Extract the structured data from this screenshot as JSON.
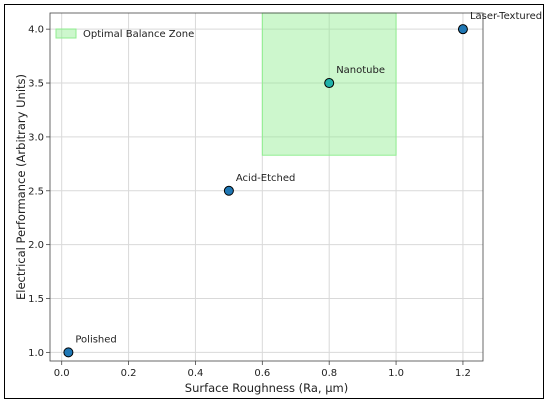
{
  "chart_data": {
    "type": "scatter",
    "xlabel": "Surface Roughness (Ra, μm)",
    "ylabel": "Electrical Performance (Arbitrary Units)",
    "xlim": [
      -0.035,
      1.26
    ],
    "ylim": [
      0.92,
      4.15
    ],
    "xticks": [
      0.0,
      0.2,
      0.4,
      0.6,
      0.8,
      1.0,
      1.2
    ],
    "yticks": [
      1.0,
      1.5,
      2.0,
      2.5,
      3.0,
      3.5,
      4.0
    ],
    "grid": true,
    "points": [
      {
        "label": "Polished",
        "x": 0.02,
        "y": 1.0,
        "color": "#1f77b4"
      },
      {
        "label": "Acid-Etched",
        "x": 0.5,
        "y": 2.5,
        "color": "#1f77b4"
      },
      {
        "label": "Nanotube",
        "x": 0.8,
        "y": 3.5,
        "color": "#20b2aa"
      },
      {
        "label": "Laser-Textured",
        "x": 1.2,
        "y": 4.0,
        "color": "#1f77b4"
      }
    ],
    "region": {
      "name": "Optimal Balance Zone",
      "x_range": [
        0.6,
        1.0
      ],
      "y_range": [
        2.83,
        4.15
      ],
      "color": "#90ee90"
    },
    "legend_position": "top-left"
  }
}
